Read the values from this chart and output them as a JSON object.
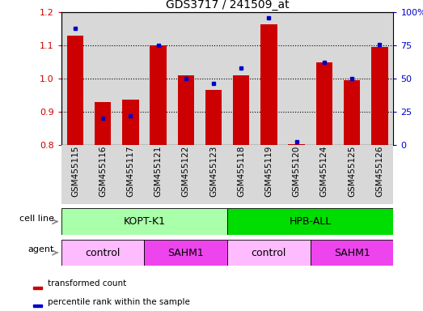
{
  "title": "GDS3717 / 241509_at",
  "categories": [
    "GSM455115",
    "GSM455116",
    "GSM455117",
    "GSM455121",
    "GSM455122",
    "GSM455123",
    "GSM455118",
    "GSM455119",
    "GSM455120",
    "GSM455124",
    "GSM455125",
    "GSM455126"
  ],
  "red_values": [
    1.13,
    0.93,
    0.935,
    1.1,
    1.01,
    0.965,
    1.01,
    1.165,
    0.802,
    1.05,
    0.995,
    1.095
  ],
  "blue_values": [
    88,
    20,
    22,
    75,
    50,
    46,
    58,
    96,
    2,
    62,
    50,
    76
  ],
  "ylim_left": [
    0.8,
    1.2
  ],
  "ylim_right": [
    0,
    100
  ],
  "yticks_left": [
    0.8,
    0.9,
    1.0,
    1.1,
    1.2
  ],
  "yticks_right": [
    0,
    25,
    50,
    75,
    100
  ],
  "red_color": "#cc0000",
  "blue_color": "#0000cc",
  "bar_width": 0.6,
  "cell_line_groups": [
    {
      "label": "KOPT-K1",
      "start": 0,
      "end": 6,
      "color": "#aaffaa"
    },
    {
      "label": "HPB-ALL",
      "start": 6,
      "end": 12,
      "color": "#00dd00"
    }
  ],
  "agent_groups": [
    {
      "label": "control",
      "start": 0,
      "end": 3,
      "color": "#ffbbff"
    },
    {
      "label": "SAHM1",
      "start": 3,
      "end": 6,
      "color": "#ee44ee"
    },
    {
      "label": "control",
      "start": 6,
      "end": 9,
      "color": "#ffbbff"
    },
    {
      "label": "SAHM1",
      "start": 9,
      "end": 12,
      "color": "#ee44ee"
    }
  ],
  "legend_items": [
    {
      "label": "transformed count",
      "color": "#cc0000"
    },
    {
      "label": "percentile rank within the sample",
      "color": "#0000cc"
    }
  ],
  "bg_color": "#ffffff",
  "tick_label_color_left": "#cc0000",
  "tick_label_color_right": "#0000cc",
  "col_bg_color": "#d8d8d8"
}
